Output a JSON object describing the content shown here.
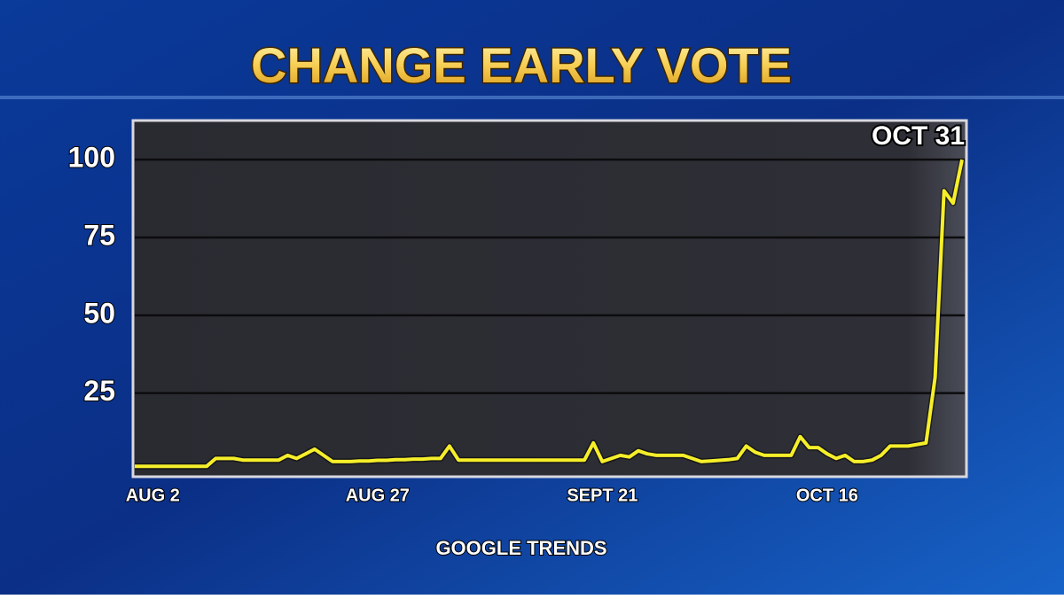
{
  "chart_data": {
    "type": "line",
    "title": "CHANGE EARLY VOTE",
    "source": "GOOGLE TRENDS",
    "categories": [
      null,
      null,
      "AUG 2",
      null,
      null,
      null,
      null,
      null,
      null,
      null,
      null,
      null,
      null,
      null,
      null,
      null,
      null,
      null,
      null,
      null,
      null,
      null,
      null,
      null,
      null,
      null,
      null,
      "AUG 27",
      null,
      null,
      null,
      null,
      null,
      null,
      null,
      null,
      null,
      null,
      null,
      null,
      null,
      null,
      null,
      null,
      null,
      null,
      null,
      null,
      null,
      null,
      null,
      null,
      "SEPT 21",
      null,
      null,
      null,
      null,
      null,
      null,
      null,
      null,
      null,
      null,
      null,
      null,
      null,
      null,
      null,
      null,
      null,
      null,
      null,
      null,
      null,
      null,
      null,
      null,
      "OCT 16",
      null,
      null,
      null,
      null,
      null,
      null,
      null,
      null,
      null,
      null,
      null,
      null,
      null,
      null,
      "OCT 31"
    ],
    "series": [
      {
        "color": "#f5ee2a",
        "values": [
          1.5,
          1.5,
          1.5,
          1.5,
          1.5,
          1.5,
          1.5,
          1.5,
          1.5,
          4,
          4,
          4,
          3.5,
          3.5,
          3.5,
          3.5,
          3.5,
          5,
          4,
          5.5,
          7,
          5,
          3,
          3,
          3,
          3.2,
          3.2,
          3.4,
          3.4,
          3.6,
          3.6,
          3.8,
          3.8,
          4,
          4,
          8,
          3.5,
          3.5,
          3.5,
          3.5,
          3.5,
          3.5,
          3.5,
          3.5,
          3.5,
          3.5,
          3.5,
          3.5,
          3.5,
          3.5,
          3.5,
          9,
          3,
          4,
          5,
          4.5,
          6.5,
          5.5,
          5,
          5,
          5,
          5,
          4,
          3,
          3.2,
          3.4,
          3.6,
          4,
          8,
          6,
          5,
          5,
          5,
          5,
          11,
          7.5,
          7.5,
          5.5,
          4,
          5,
          3,
          3,
          3.5,
          5,
          8,
          8,
          8,
          8.5,
          9,
          30,
          90,
          86,
          100
        ]
      }
    ],
    "ylim": [
      -1,
      112
    ],
    "yticks": [
      25,
      50,
      75,
      100
    ],
    "grid": true
  }
}
